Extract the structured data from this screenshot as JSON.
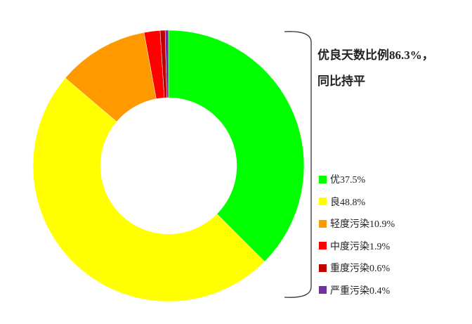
{
  "chart_data": {
    "type": "pie",
    "donut": true,
    "start": "top",
    "direction": "clockwise",
    "title": "",
    "annotation": [
      "优良天数比例86.3%，",
      "同比持平"
    ],
    "categories": [
      "优",
      "良",
      "轻度污染",
      "中度污染",
      "重度污染",
      "严重污染"
    ],
    "values": [
      37.5,
      48.8,
      10.9,
      1.9,
      0.6,
      0.4
    ],
    "colors": [
      "#00ff00",
      "#ffff00",
      "#ff9900",
      "#ff0000",
      "#c00000",
      "#7030a0"
    ],
    "legend_labels": [
      "优37.5%",
      "良48.8%",
      "轻度污染10.9%",
      "中度污染1.9%",
      "重度污染0.6%",
      "严重污染0.4%"
    ],
    "legend_position": "right"
  }
}
